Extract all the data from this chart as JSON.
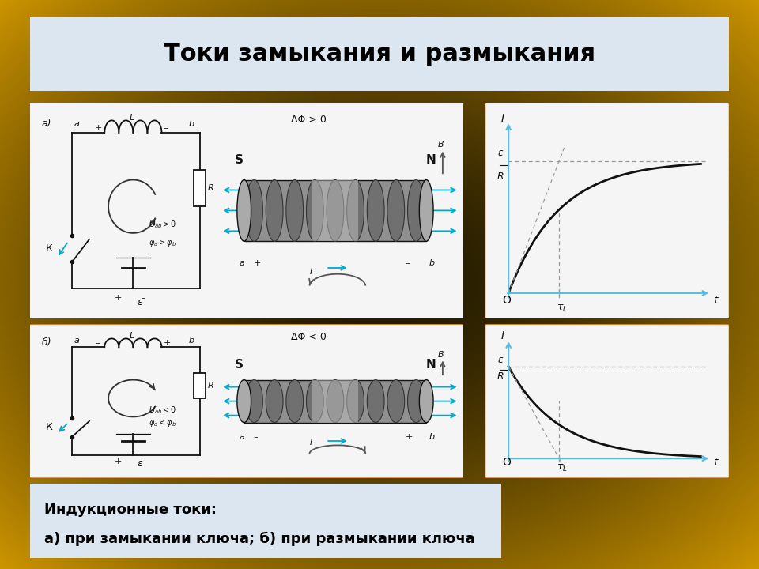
{
  "title": "Токи замыкания и размыкания",
  "title_fontsize": 22,
  "title_bg": "#dce6f1",
  "title_border": "#b0b8c8",
  "panel_bg": "#f5f5f5",
  "panel_border": "#cc6600",
  "caption_text_line1": "Индукционные токи:",
  "caption_text_line2": "а) при замыкании ключа; б) при размыкании ключа",
  "caption_bg": "#dce6f1",
  "caption_border": "#b0b8c8",
  "caption_fontsize": 13,
  "graph_axis_color": "#5abcd8",
  "curve_color": "#111111",
  "dashed_color": "#999999",
  "bg_gold": "#c8940a",
  "bg_dark": "#1a1400",
  "bg_mid": "#3d2e00"
}
